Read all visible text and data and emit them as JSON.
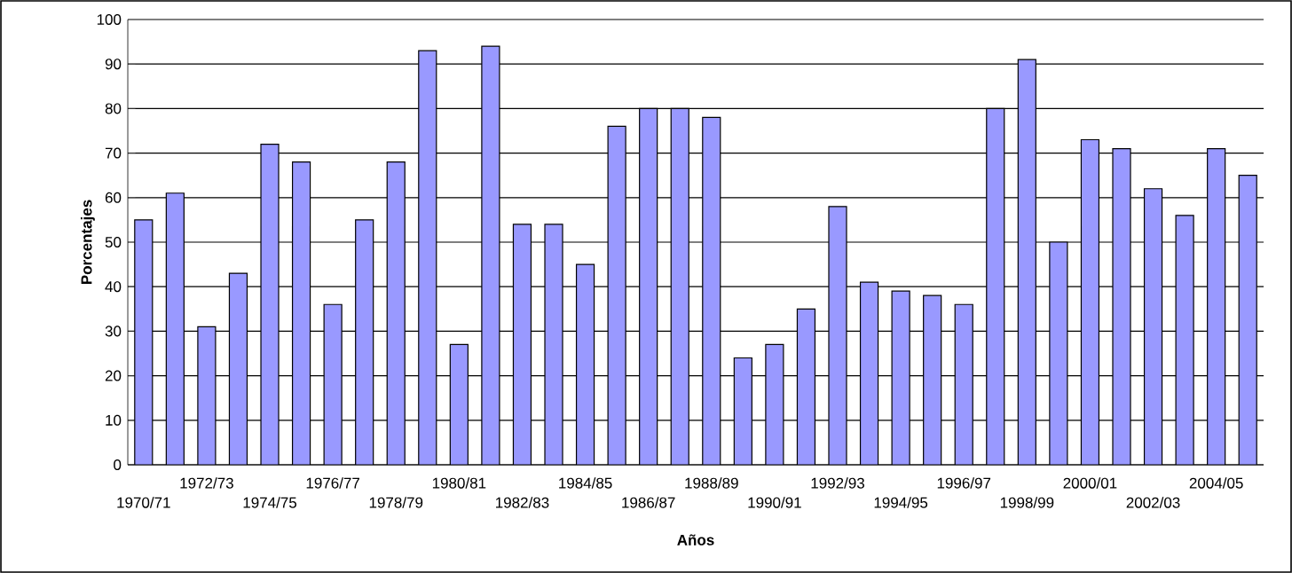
{
  "chart_data": {
    "type": "bar",
    "xlabel": "Años",
    "ylabel": "Porcentajes",
    "categories": [
      "1970/71",
      null,
      "1972/73",
      null,
      "1974/75",
      null,
      "1976/77",
      null,
      "1978/79",
      null,
      "1980/81",
      null,
      "1982/83",
      null,
      "1984/85",
      null,
      "1986/87",
      null,
      "1988/89",
      null,
      "1990/91",
      null,
      "1992/93",
      null,
      "1994/95",
      null,
      "1996/97",
      null,
      "1998/99",
      null,
      "2000/01",
      null,
      "2002/03",
      null,
      "2004/05",
      null
    ],
    "values": [
      55,
      61,
      31,
      43,
      72,
      68,
      36,
      55,
      68,
      93,
      27,
      94,
      54,
      54,
      45,
      76,
      80,
      80,
      78,
      24,
      27,
      35,
      58,
      41,
      39,
      38,
      36,
      80,
      91,
      50,
      73,
      71,
      62,
      56,
      71,
      65
    ],
    "color": "#9999ff",
    "ylim": [
      0,
      100
    ],
    "yticks": [
      0,
      10,
      20,
      30,
      40,
      50,
      60,
      70,
      80,
      90,
      100
    ],
    "grid": "y"
  }
}
